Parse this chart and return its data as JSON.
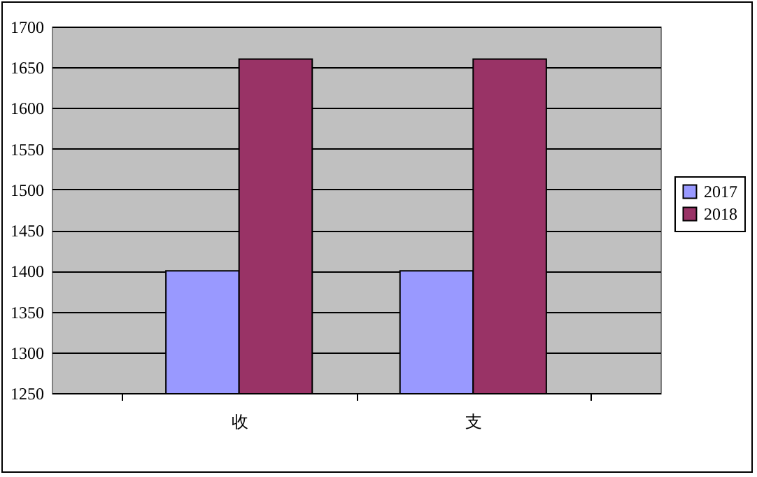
{
  "chart_data": {
    "type": "bar",
    "categories": [
      "收",
      "支"
    ],
    "series": [
      {
        "name": "2017",
        "color": "#9999ff",
        "values": [
          1400,
          1400
        ]
      },
      {
        "name": "2018",
        "color": "#993366",
        "values": [
          1660,
          1660
        ]
      }
    ],
    "ylim": [
      1250,
      1700
    ],
    "yticks": [
      1250,
      1300,
      1350,
      1400,
      1450,
      1500,
      1550,
      1600,
      1650,
      1700
    ],
    "grid": "y",
    "legend": "right"
  }
}
